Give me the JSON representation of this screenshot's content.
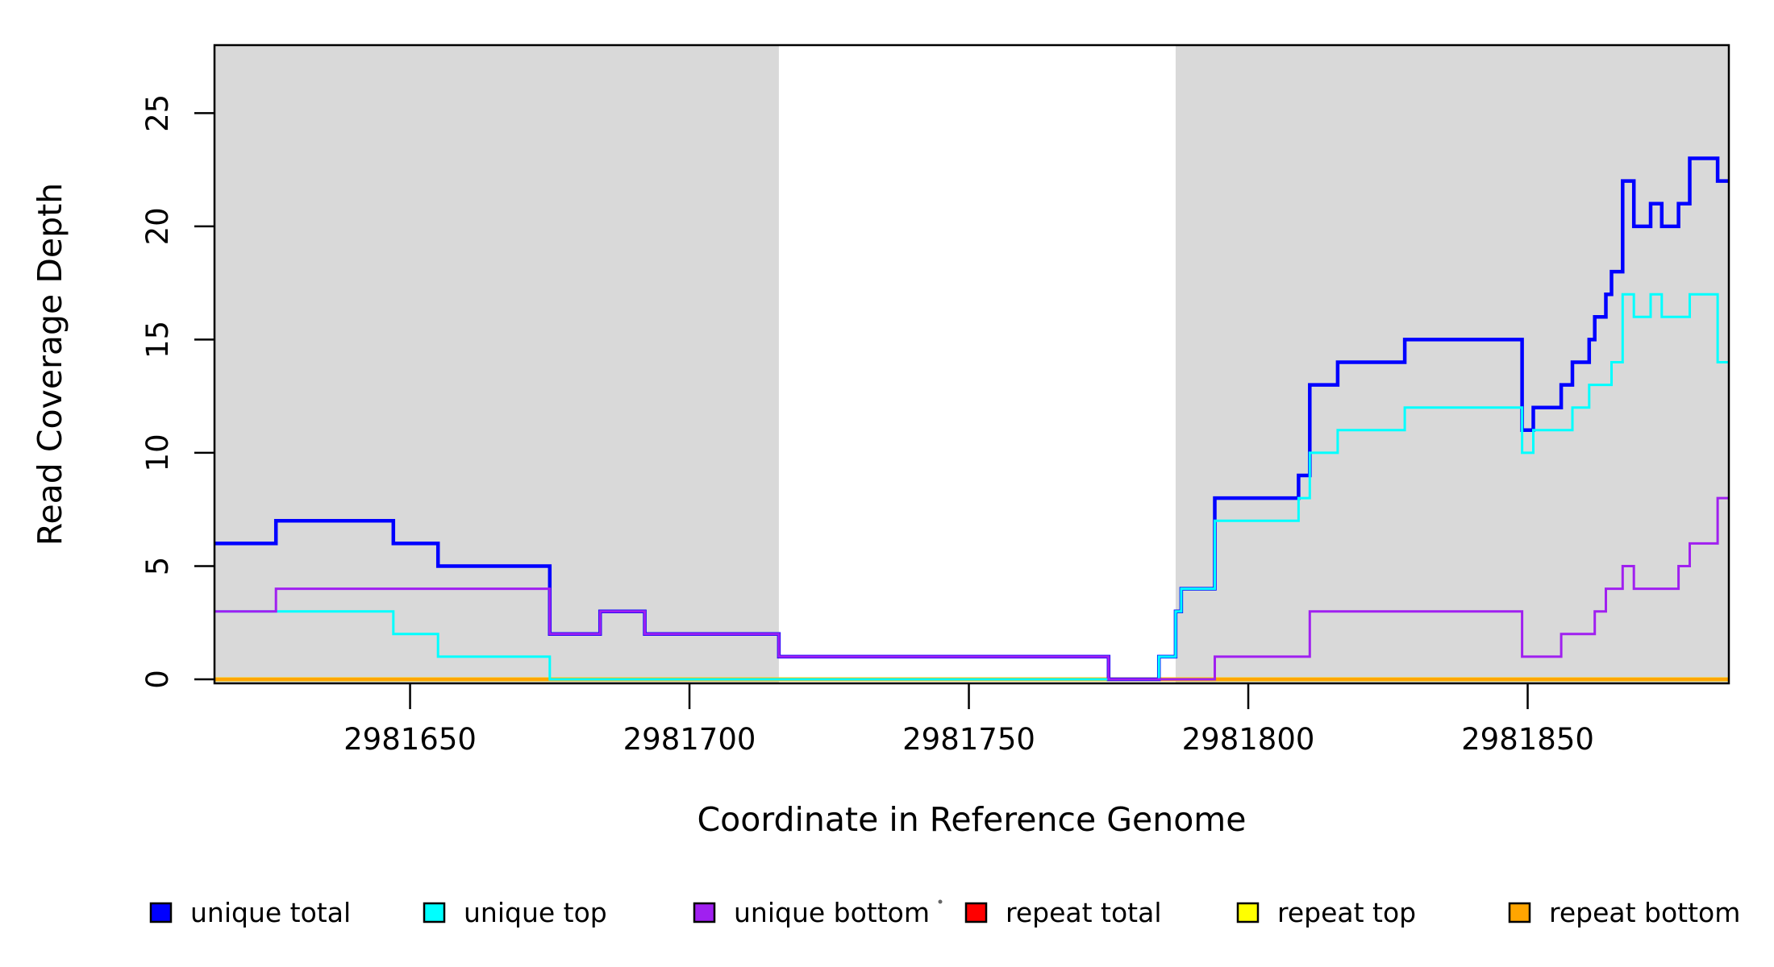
{
  "chart_data": {
    "type": "line",
    "subtype": "step-coverage-plot",
    "title": "",
    "xlabel": "Coordinate in Reference Genome",
    "ylabel": "Read Coverage Depth",
    "xlim": [
      2981615,
      2981886
    ],
    "ylim": [
      0,
      28
    ],
    "x_ticks": [
      2981650,
      2981700,
      2981750,
      2981800,
      2981850
    ],
    "y_ticks": [
      0,
      5,
      10,
      15,
      20,
      25
    ],
    "grid": "off",
    "background_color": "#ffffff",
    "shaded_region_color": "#d9d9d9",
    "shaded_regions": [
      [
        2981615,
        2981716
      ],
      [
        2981787,
        2981886
      ]
    ],
    "series": [
      {
        "name": "repeat total",
        "color": "#ff0000",
        "line_width": 5,
        "segments": [
          [
            2981615,
            2981886,
            0
          ]
        ]
      },
      {
        "name": "repeat top",
        "color": "#ffff00",
        "line_width": 5,
        "segments": [
          [
            2981615,
            2981886,
            0
          ]
        ]
      },
      {
        "name": "repeat bottom",
        "color": "#ffa500",
        "line_width": 4.5,
        "segments": [
          [
            2981615,
            2981886,
            0
          ]
        ]
      },
      {
        "name": "unique total",
        "color": "#0000ff",
        "line_width": 4.5,
        "segments": [
          [
            2981615,
            2981626,
            6
          ],
          [
            2981626,
            2981647,
            7
          ],
          [
            2981647,
            2981655,
            6
          ],
          [
            2981655,
            2981675,
            5
          ],
          [
            2981675,
            2981684,
            2
          ],
          [
            2981684,
            2981692,
            3
          ],
          [
            2981692,
            2981716,
            2
          ],
          [
            2981716,
            2981775,
            1
          ],
          [
            2981775,
            2981784,
            0
          ],
          [
            2981784,
            2981787,
            1
          ],
          [
            2981787,
            2981788,
            3
          ],
          [
            2981788,
            2981794,
            4
          ],
          [
            2981794,
            2981809,
            8
          ],
          [
            2981809,
            2981811,
            9
          ],
          [
            2981811,
            2981816,
            13
          ],
          [
            2981816,
            2981828,
            14
          ],
          [
            2981828,
            2981849,
            15
          ],
          [
            2981849,
            2981851,
            11
          ],
          [
            2981851,
            2981856,
            12
          ],
          [
            2981856,
            2981858,
            13
          ],
          [
            2981858,
            2981861,
            14
          ],
          [
            2981861,
            2981862,
            15
          ],
          [
            2981862,
            2981864,
            16
          ],
          [
            2981864,
            2981865,
            17
          ],
          [
            2981865,
            2981867,
            18
          ],
          [
            2981867,
            2981869,
            22
          ],
          [
            2981869,
            2981872,
            20
          ],
          [
            2981872,
            2981874,
            21
          ],
          [
            2981874,
            2981877,
            20
          ],
          [
            2981877,
            2981879,
            21
          ],
          [
            2981879,
            2981884,
            23
          ],
          [
            2981884,
            2981886,
            22
          ]
        ]
      },
      {
        "name": "unique top",
        "color": "#00ffff",
        "line_width": 3,
        "segments": [
          [
            2981615,
            2981647,
            3
          ],
          [
            2981647,
            2981655,
            2
          ],
          [
            2981655,
            2981675,
            1
          ],
          [
            2981675,
            2981784,
            0
          ],
          [
            2981784,
            2981787,
            1
          ],
          [
            2981787,
            2981788,
            3
          ],
          [
            2981788,
            2981794,
            4
          ],
          [
            2981794,
            2981809,
            7
          ],
          [
            2981809,
            2981811,
            8
          ],
          [
            2981811,
            2981816,
            10
          ],
          [
            2981816,
            2981828,
            11
          ],
          [
            2981828,
            2981849,
            12
          ],
          [
            2981849,
            2981851,
            10
          ],
          [
            2981851,
            2981858,
            11
          ],
          [
            2981858,
            2981861,
            12
          ],
          [
            2981861,
            2981865,
            13
          ],
          [
            2981865,
            2981867,
            14
          ],
          [
            2981867,
            2981869,
            17
          ],
          [
            2981869,
            2981872,
            16
          ],
          [
            2981872,
            2981874,
            17
          ],
          [
            2981874,
            2981879,
            16
          ],
          [
            2981879,
            2981884,
            17
          ],
          [
            2981884,
            2981886,
            14
          ]
        ]
      },
      {
        "name": "unique bottom",
        "color": "#a020f0",
        "line_width": 3,
        "segments": [
          [
            2981615,
            2981626,
            3
          ],
          [
            2981626,
            2981675,
            4
          ],
          [
            2981675,
            2981684,
            2
          ],
          [
            2981684,
            2981692,
            3
          ],
          [
            2981692,
            2981716,
            2
          ],
          [
            2981716,
            2981775,
            1
          ],
          [
            2981775,
            2981794,
            0
          ],
          [
            2981794,
            2981811,
            1
          ],
          [
            2981811,
            2981849,
            3
          ],
          [
            2981849,
            2981856,
            1
          ],
          [
            2981856,
            2981862,
            2
          ],
          [
            2981862,
            2981864,
            3
          ],
          [
            2981864,
            2981867,
            4
          ],
          [
            2981867,
            2981869,
            5
          ],
          [
            2981869,
            2981877,
            4
          ],
          [
            2981877,
            2981879,
            5
          ],
          [
            2981879,
            2981884,
            6
          ],
          [
            2981884,
            2981886,
            8
          ]
        ]
      }
    ],
    "legend": {
      "position": "bottom",
      "items": [
        {
          "label": "unique total",
          "color": "#0000ff"
        },
        {
          "label": "unique top",
          "color": "#00ffff"
        },
        {
          "label": "unique bottom",
          "color": "#a020f0"
        },
        {
          "label": "repeat total",
          "color": "#ff0000"
        },
        {
          "label": "repeat top",
          "color": "#ffff00"
        },
        {
          "label": "repeat bottom",
          "color": "#ffa500"
        }
      ]
    }
  }
}
